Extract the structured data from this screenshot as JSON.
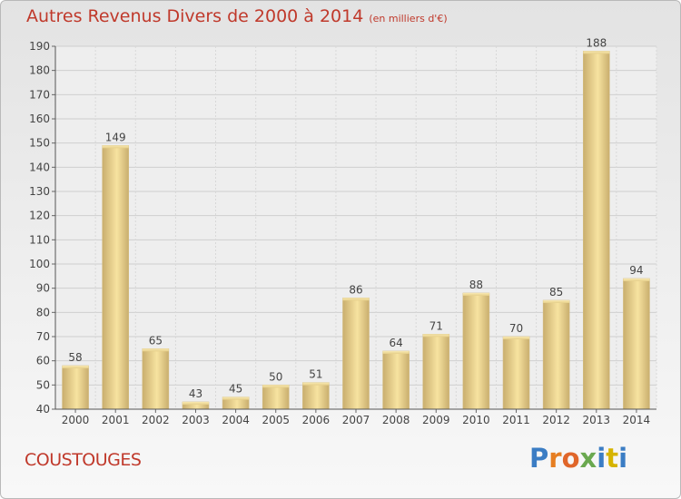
{
  "title": "Autres Revenus Divers de 2000 à 2014",
  "subtitle": "(en milliers d'€)",
  "place": "COUSTOUGES",
  "logo": {
    "text": "Proxiti",
    "colors": [
      "#3b7dc4",
      "#e67e22",
      "#e0662a",
      "#6aa84f",
      "#3b7dc4",
      "#d6b400",
      "#3b7dc4"
    ]
  },
  "colors": {
    "title": "#c0392b",
    "bar_light": "#f7e3a0",
    "bar_dark": "#c9ae6e"
  },
  "chart_data": {
    "type": "bar",
    "title": "Autres Revenus Divers de 2000 à 2014",
    "subtitle": "(en milliers d'€)",
    "categories": [
      "2000",
      "2001",
      "2002",
      "2003",
      "2004",
      "2005",
      "2006",
      "2007",
      "2008",
      "2009",
      "2010",
      "2011",
      "2012",
      "2013",
      "2014"
    ],
    "values": [
      58,
      149,
      65,
      43,
      45,
      50,
      51,
      86,
      64,
      71,
      88,
      70,
      85,
      188,
      94
    ],
    "ylim": [
      40,
      190
    ],
    "yticks": [
      40,
      50,
      60,
      70,
      80,
      90,
      100,
      110,
      120,
      130,
      140,
      150,
      160,
      170,
      180,
      190
    ],
    "grid": true,
    "data_labels": true
  }
}
